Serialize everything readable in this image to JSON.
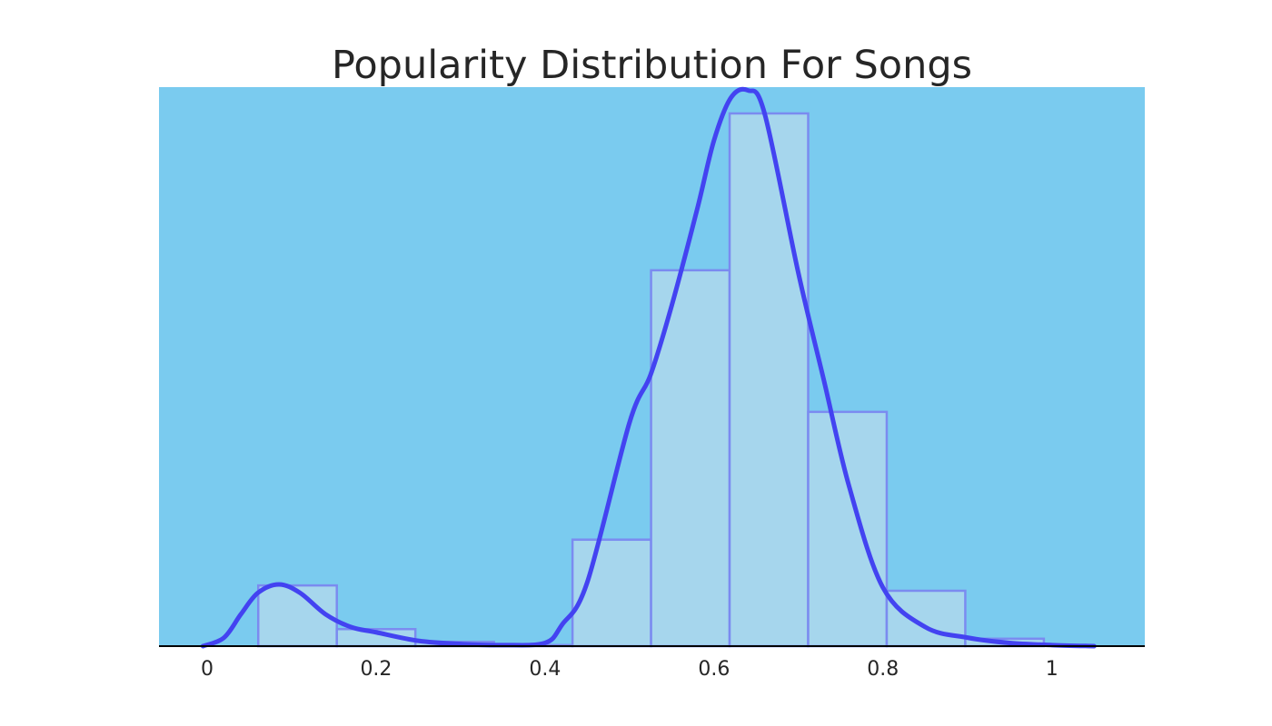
{
  "chart_data": {
    "type": "histogram",
    "title": "Popularity Distribution For Songs",
    "xlabel": "",
    "ylabel": "",
    "xlim": [
      -0.057,
      1.11
    ],
    "ylim": [
      0,
      5.25
    ],
    "grid": false,
    "x_ticks": [
      {
        "value": 0,
        "label": "0"
      },
      {
        "value": 0.2,
        "label": "0.2"
      },
      {
        "value": 0.4,
        "label": "0.4"
      },
      {
        "value": 0.6,
        "label": "0.6"
      },
      {
        "value": 0.8,
        "label": "0.8"
      },
      {
        "value": 1,
        "label": "1"
      }
    ],
    "bins": [
      {
        "x0": 0.0605,
        "x1": 0.1535,
        "value": 0.57
      },
      {
        "x0": 0.1535,
        "x1": 0.2465,
        "value": 0.16
      },
      {
        "x0": 0.2465,
        "x1": 0.3395,
        "value": 0.04
      },
      {
        "x0": 0.3395,
        "x1": 0.4325,
        "value": 0.01
      },
      {
        "x0": 0.4325,
        "x1": 0.5255,
        "value": 1.0
      },
      {
        "x0": 0.5255,
        "x1": 0.6185,
        "value": 3.53
      },
      {
        "x0": 0.6185,
        "x1": 0.7115,
        "value": 5.27
      },
      {
        "x0": 0.7115,
        "x1": 0.8045,
        "value": 2.2
      },
      {
        "x0": 0.8045,
        "x1": 0.8975,
        "value": 0.52
      },
      {
        "x0": 0.8975,
        "x1": 0.9905,
        "value": 0.07
      }
    ],
    "density_curve": {
      "x": [
        -0.005,
        0.02,
        0.04,
        0.06,
        0.085,
        0.11,
        0.14,
        0.17,
        0.2,
        0.25,
        0.3,
        0.35,
        0.4,
        0.42,
        0.45,
        0.5,
        0.525,
        0.55,
        0.58,
        0.6,
        0.62,
        0.64,
        0.66,
        0.7,
        0.73,
        0.76,
        0.8,
        0.85,
        0.9,
        0.95,
        1.0,
        1.05
      ],
      "y": [
        0.0,
        0.08,
        0.3,
        0.5,
        0.58,
        0.5,
        0.3,
        0.18,
        0.13,
        0.05,
        0.02,
        0.01,
        0.03,
        0.2,
        0.6,
        2.1,
        2.55,
        3.2,
        4.1,
        4.75,
        5.15,
        5.22,
        5.0,
        3.5,
        2.5,
        1.5,
        0.55,
        0.18,
        0.08,
        0.03,
        0.01,
        0.0
      ]
    },
    "colors": {
      "background": "#7acbef",
      "bar_fill": "#a6d6ed",
      "bar_edge": "#7b8bf0",
      "curve": "#4343f1",
      "axis": "#000000"
    }
  }
}
